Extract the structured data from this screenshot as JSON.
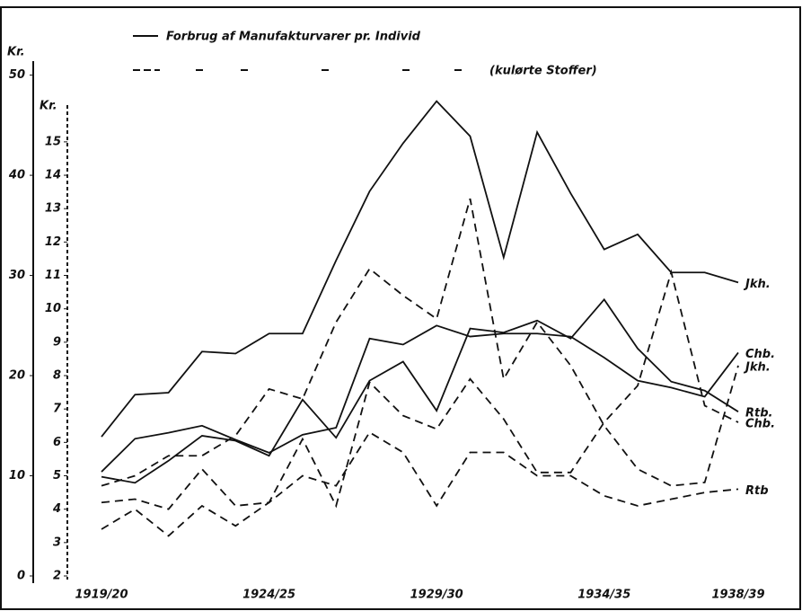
{
  "chart_data": {
    "type": "line",
    "legend": [
      "Forbrug af Manufakturvarer pr. Individ",
      "(kulørte Stoffer)"
    ],
    "y_label": "Kr.",
    "y2_label": "Kr.",
    "categories": [
      "1919/20",
      null,
      null,
      null,
      null,
      "1924/25",
      null,
      null,
      null,
      null,
      "1929/30",
      null,
      null,
      null,
      null,
      "1934/35",
      null,
      null,
      null,
      "1938/39"
    ],
    "ylim": [
      0,
      51.4
    ],
    "yticks": [
      0,
      10,
      20,
      30,
      40,
      50
    ],
    "y2lim": [
      2,
      16.1
    ],
    "y2ticks": [
      2,
      3,
      4,
      5,
      6,
      7,
      8,
      9,
      10,
      11,
      12,
      13,
      14,
      15
    ],
    "series": [
      {
        "name": "Jkh.",
        "color": "#111111",
        "style": "solid",
        "values": [
          13.9,
          18.1,
          18.3,
          22.4,
          22.2,
          24.2,
          24.2,
          31.5,
          38.4,
          43.2,
          47.4,
          43.9,
          31.8,
          44.3,
          38.2,
          32.6,
          34.1,
          30.3,
          30.3,
          29.3
        ]
      },
      {
        "name": "Chb.",
        "color": "#111111",
        "style": "solid",
        "values": [
          10.4,
          13.7,
          14.3,
          15.0,
          13.6,
          12.3,
          14.1,
          14.8,
          23.7,
          23.1,
          25.0,
          23.9,
          24.2,
          24.2,
          23.9,
          21.8,
          19.5,
          18.8,
          17.9,
          22.3
        ]
      },
      {
        "name": "Rtb.",
        "color": "#111111",
        "style": "solid",
        "values": [
          9.9,
          9.3,
          11.5,
          14.0,
          13.5,
          12.0,
          17.6,
          13.8,
          19.5,
          21.4,
          16.5,
          24.7,
          24.3,
          25.5,
          23.7,
          27.6,
          22.7,
          19.4,
          18.5,
          16.4
        ]
      },
      {
        "name": "Jkh.",
        "color": "#111111",
        "style": "dashed",
        "axis": "y2",
        "values": [
          4.7,
          5.0,
          5.6,
          5.6,
          6.2,
          7.6,
          7.3,
          9.6,
          11.2,
          10.4,
          9.7,
          13.3,
          7.9,
          9.6,
          8.3,
          6.5,
          5.2,
          4.7,
          4.8,
          8.3
        ]
      },
      {
        "name": "Chb.",
        "color": "#111111",
        "style": "dashed",
        "axis": "y2",
        "values": [
          4.2,
          4.3,
          4.0,
          5.2,
          4.1,
          4.2,
          6.1,
          4.1,
          7.8,
          6.8,
          6.4,
          7.9,
          6.7,
          5.1,
          5.1,
          6.6,
          7.7,
          11.1,
          7.1,
          6.6
        ]
      },
      {
        "name": "Rtb",
        "color": "#111111",
        "style": "dashed",
        "axis": "y2",
        "values": [
          3.4,
          4.0,
          3.2,
          4.1,
          3.5,
          4.2,
          5.0,
          4.7,
          6.3,
          5.7,
          4.1,
          5.7,
          5.7,
          5.0,
          5.0,
          4.4,
          4.1,
          4.3,
          4.5,
          4.6
        ]
      }
    ]
  }
}
